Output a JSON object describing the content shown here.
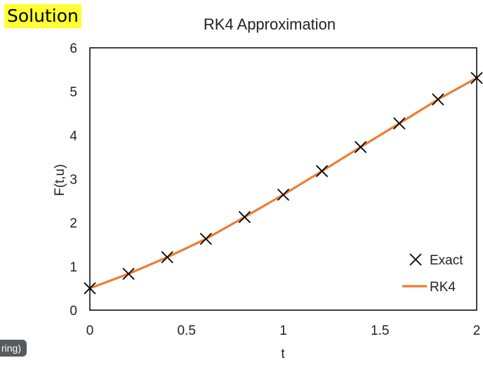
{
  "header": {
    "badge_text": "Solution"
  },
  "overlay": {
    "caption_fragment": "ring)"
  },
  "chart_data": {
    "type": "scatter",
    "title": "RK4 Approximation",
    "xlabel": "t",
    "ylabel": "F(t,u)",
    "xlim": [
      0,
      2
    ],
    "ylim": [
      0,
      6
    ],
    "x_ticks": [
      0,
      0.5,
      1,
      1.5,
      2
    ],
    "x_tick_labels": [
      "0",
      "0.5",
      "1",
      "1.5",
      "2"
    ],
    "y_ticks": [
      0,
      1,
      2,
      3,
      4,
      5,
      6
    ],
    "y_tick_labels": [
      "0",
      "1",
      "2",
      "3",
      "4",
      "5",
      "6"
    ],
    "grid": false,
    "legend_position": "bottom-right",
    "series": [
      {
        "name": "Exact",
        "type": "scatter",
        "marker": "x",
        "color": "#000000",
        "x": [
          0,
          0.2,
          0.4,
          0.6,
          0.8,
          1.0,
          1.2,
          1.4,
          1.6,
          1.8,
          2.0
        ],
        "y": [
          0.5,
          0.83,
          1.21,
          1.63,
          2.13,
          2.64,
          3.18,
          3.73,
          4.27,
          4.82,
          5.31
        ]
      },
      {
        "name": "RK4",
        "type": "line",
        "color": "#ed7d31",
        "x": [
          0,
          0.2,
          0.4,
          0.6,
          0.8,
          1.0,
          1.2,
          1.4,
          1.6,
          1.8,
          2.0
        ],
        "y": [
          0.5,
          0.83,
          1.21,
          1.63,
          2.13,
          2.64,
          3.18,
          3.73,
          4.27,
          4.82,
          5.31
        ]
      }
    ]
  }
}
